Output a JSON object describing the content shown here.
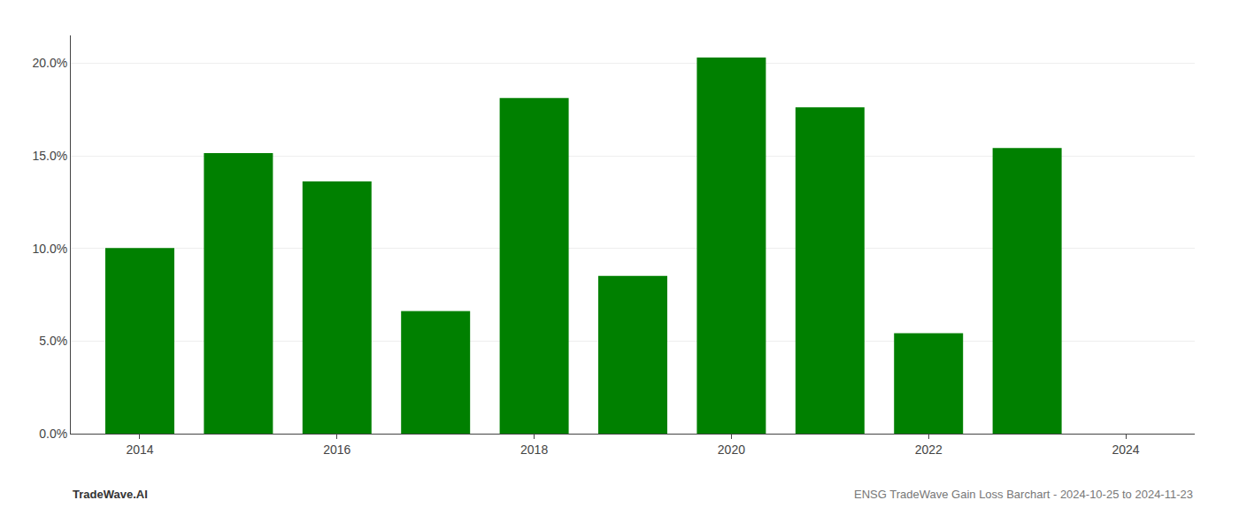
{
  "chart_data": {
    "type": "bar",
    "x": [
      2014,
      2015,
      2016,
      2017,
      2018,
      2019,
      2020,
      2021,
      2022,
      2023
    ],
    "values": [
      0.1002,
      0.1515,
      0.1362,
      0.0662,
      0.1812,
      0.0852,
      0.203,
      0.1762,
      0.0542,
      0.1542
    ],
    "color": "#008000",
    "xlim": [
      2013.3,
      2024.7
    ],
    "xticks": [
      2014,
      2016,
      2018,
      2020,
      2022,
      2024
    ],
    "ylim": [
      0,
      0.215
    ],
    "yticks": [
      {
        "value": 0.0,
        "label": "0.0%"
      },
      {
        "value": 0.05,
        "label": "5.0%"
      },
      {
        "value": 0.1,
        "label": "10.0%"
      },
      {
        "value": 0.15,
        "label": "15.0%"
      },
      {
        "value": 0.2,
        "label": "20.0%"
      }
    ],
    "grid": true,
    "annotations": [
      "TradeWave.AI",
      "ENSG TradeWave Gain Loss Barchart - 2024-10-25 to 2024-11-23"
    ]
  }
}
